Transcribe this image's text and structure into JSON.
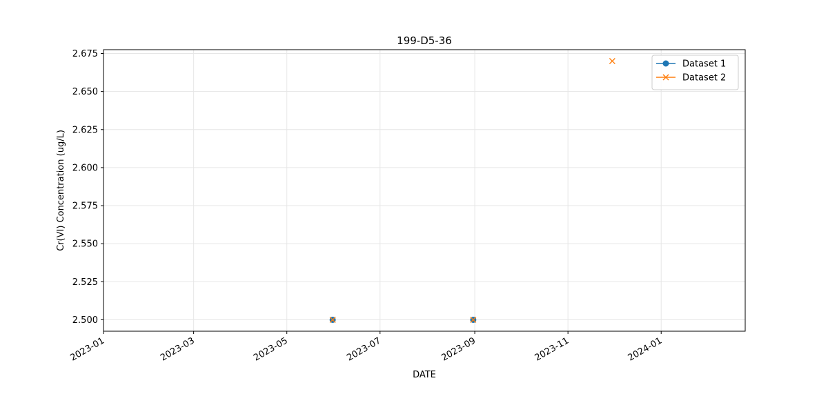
{
  "chart_data": {
    "type": "scatter",
    "title": "199-D5-36",
    "xlabel": "DATE",
    "ylabel": "Cr(VI) Concentration (ug/L)",
    "x_is_date": true,
    "xlim": [
      "2023-01-01",
      "2024-02-25"
    ],
    "ylim": [
      2.4925,
      2.6775
    ],
    "x_ticks": [
      "2023-01",
      "2023-03",
      "2023-05",
      "2023-07",
      "2023-09",
      "2023-11",
      "2024-01"
    ],
    "y_ticks": [
      "2.500",
      "2.525",
      "2.550",
      "2.575",
      "2.600",
      "2.625",
      "2.650",
      "2.675"
    ],
    "grid": true,
    "legend_position": "top-right",
    "series": [
      {
        "name": "Dataset 1",
        "marker": "circle",
        "color": "#1f77b4",
        "points": [
          {
            "x": "2023-05-31",
            "y": 2.5
          },
          {
            "x": "2023-08-31",
            "y": 2.5
          }
        ]
      },
      {
        "name": "Dataset 2",
        "marker": "x",
        "color": "#ff7f0e",
        "points": [
          {
            "x": "2023-05-31",
            "y": 2.5
          },
          {
            "x": "2023-08-31",
            "y": 2.5
          },
          {
            "x": "2023-11-30",
            "y": 2.67
          }
        ]
      }
    ]
  }
}
